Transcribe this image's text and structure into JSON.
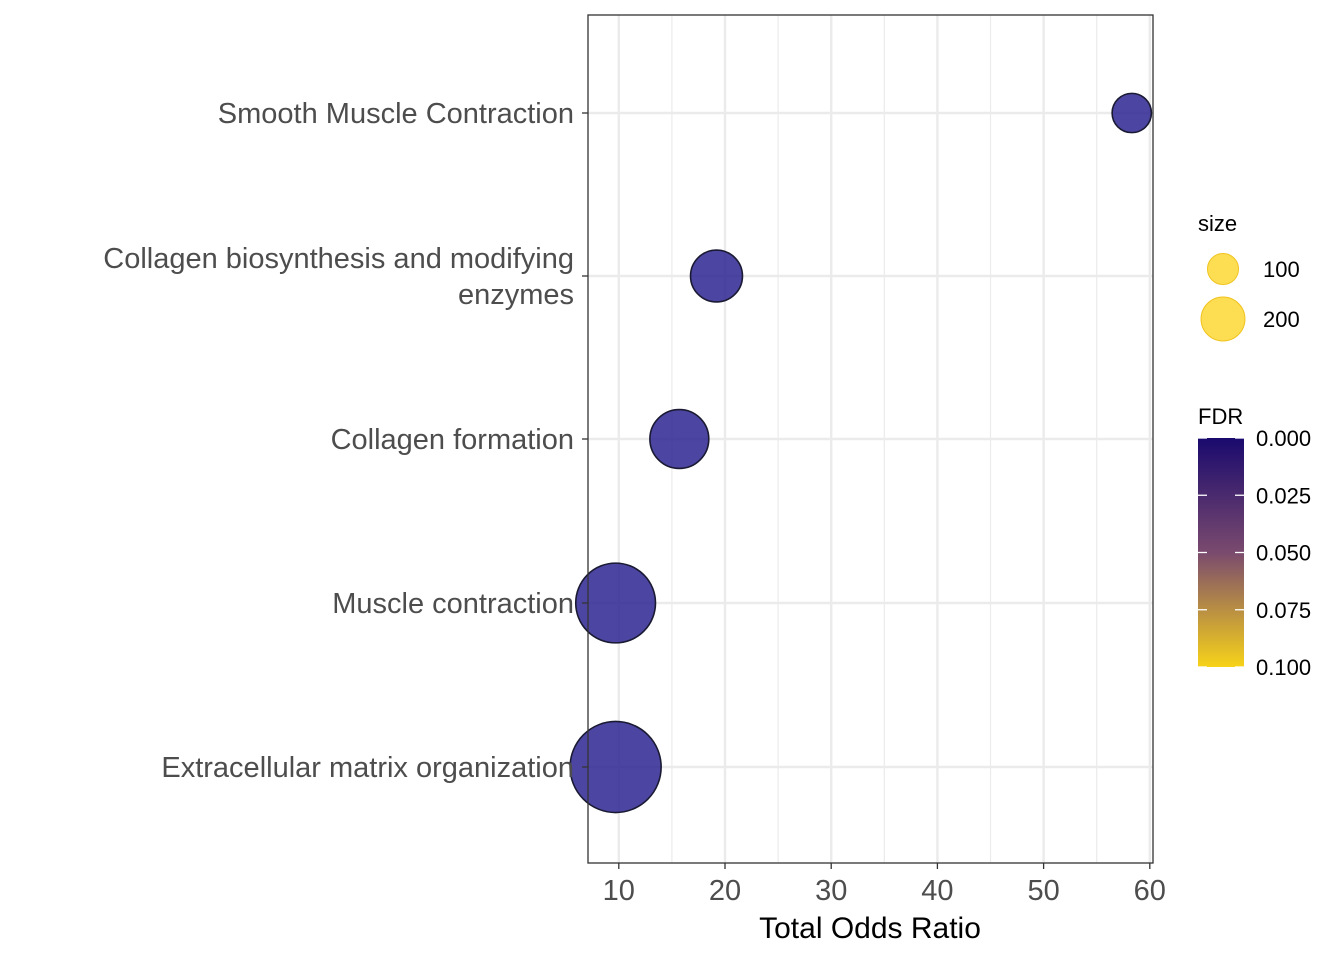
{
  "chart_data": {
    "type": "scatter",
    "xlabel": "Total Odds Ratio",
    "ylabel": "",
    "xlim": [
      7.1,
      60.3
    ],
    "x_ticks": [
      "10",
      "20",
      "30",
      "40",
      "50",
      "60"
    ],
    "x_tick_values": [
      10,
      20,
      30,
      40,
      50,
      60
    ],
    "grid": true,
    "categories": [
      [
        "Smooth Muscle Contraction"
      ],
      [
        "Collagen biosynthesis and modifying",
        "enzymes"
      ],
      [
        "Collagen formation"
      ],
      [
        "Muscle contraction"
      ],
      [
        "Extracellular matrix organization"
      ]
    ],
    "points": [
      {
        "x": 58.3,
        "size": 40,
        "fdr": 0.005
      },
      {
        "x": 19.2,
        "size": 70,
        "fdr": 0.005
      },
      {
        "x": 15.7,
        "size": 90,
        "fdr": 0.005
      },
      {
        "x": 9.7,
        "size": 165,
        "fdr": 0.005
      },
      {
        "x": 9.7,
        "size": 215,
        "fdr": 0.005
      }
    ],
    "point_color": "#2d2491",
    "legend_size": {
      "title": "size",
      "entries": [
        "100",
        "200"
      ],
      "values": [
        100,
        200
      ],
      "color": "#fdd835"
    },
    "legend_fdr": {
      "title": "FDR",
      "ticks": [
        "0.000",
        "0.025",
        "0.050",
        "0.075",
        "0.100"
      ],
      "tick_values": [
        0,
        0.025,
        0.05,
        0.075,
        0.1
      ],
      "color_low": "#1a0a6e",
      "color_mid": "#7a4a6e",
      "color_high": "#f7d319"
    },
    "legend_placement": "right"
  }
}
